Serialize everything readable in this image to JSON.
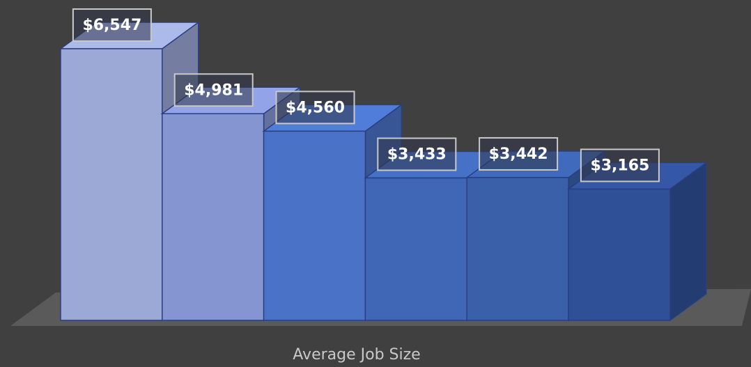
{
  "chart_data": {
    "type": "bar3d",
    "x_label": "Average Job Size",
    "values": [
      6547,
      4981,
      4560,
      3433,
      3442,
      3165
    ],
    "value_labels": [
      "$6,547",
      "$4,981",
      "$4,560",
      "$3,433",
      "$3,442",
      "$3,165"
    ],
    "colors": [
      "#9ca8d6",
      "#8595d2",
      "#4a72c6",
      "#3f67b5",
      "#3a60aa",
      "#2f5096"
    ]
  }
}
